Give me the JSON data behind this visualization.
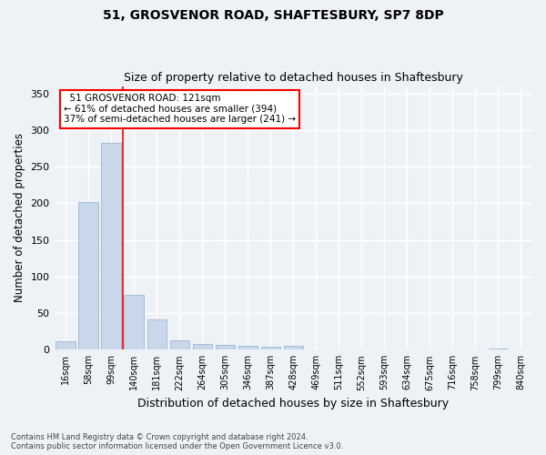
{
  "title1": "51, GROSVENOR ROAD, SHAFTESBURY, SP7 8DP",
  "title2": "Size of property relative to detached houses in Shaftesbury",
  "xlabel": "Distribution of detached houses by size in Shaftesbury",
  "ylabel": "Number of detached properties",
  "categories": [
    "16sqm",
    "58sqm",
    "99sqm",
    "140sqm",
    "181sqm",
    "222sqm",
    "264sqm",
    "305sqm",
    "346sqm",
    "387sqm",
    "428sqm",
    "469sqm",
    "511sqm",
    "552sqm",
    "593sqm",
    "634sqm",
    "675sqm",
    "716sqm",
    "758sqm",
    "799sqm",
    "840sqm"
  ],
  "values": [
    12,
    202,
    283,
    75,
    41,
    13,
    8,
    6,
    5,
    4,
    5,
    1,
    0,
    0,
    0,
    0,
    0,
    0,
    0,
    2,
    0
  ],
  "bar_color": "#c8d8ea",
  "bar_edge_color": "#9ab8d0",
  "bar_width": 0.85,
  "ylim": [
    0,
    360
  ],
  "yticks": [
    0,
    50,
    100,
    150,
    200,
    250,
    300,
    350
  ],
  "red_line_x": 2.5,
  "annotation_line1": "  51 GROSVENOR ROAD: 121sqm",
  "annotation_line2": "← 61% of detached houses are smaller (394)",
  "annotation_line3": "37% of semi-detached houses are larger (241) →",
  "bg_color": "#eef2f7",
  "grid_color": "#ffffff",
  "footer": "Contains HM Land Registry data © Crown copyright and database right 2024.\nContains public sector information licensed under the Open Government Licence v3.0."
}
